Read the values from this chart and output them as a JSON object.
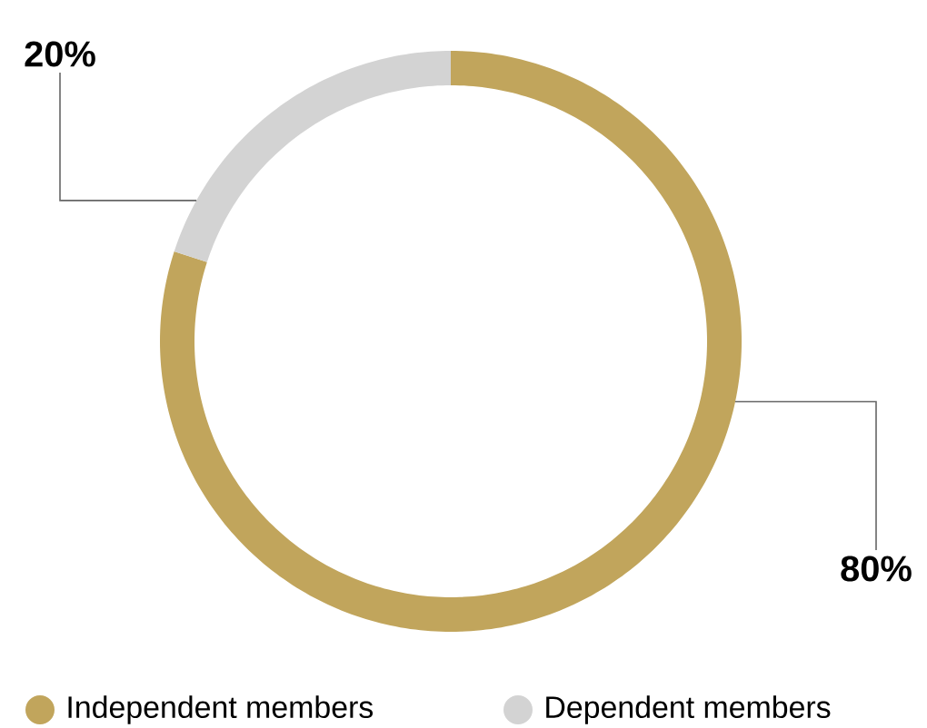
{
  "chart_data": {
    "type": "donut",
    "categories": [
      "Independent members",
      "Dependent members"
    ],
    "values": [
      80,
      20
    ],
    "colors": [
      "#c1a55c",
      "#d3d3d3"
    ],
    "value_labels": [
      "80%",
      "20%"
    ],
    "legend": "bottom"
  }
}
